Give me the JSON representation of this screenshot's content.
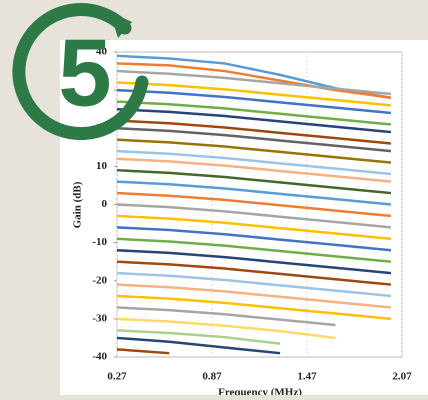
{
  "badge": "5",
  "chart_data": {
    "type": "line",
    "xlabel": "Frequency (MHz)",
    "ylabel": "Gain (dB)",
    "x": [
      0.27,
      0.6,
      0.95,
      1.3,
      1.65,
      2.0
    ],
    "xlim": [
      0.27,
      2.07
    ],
    "xticks": [
      0.27,
      0.87,
      1.47,
      2.07
    ],
    "ylim": [
      -40,
      40
    ],
    "yticks": [
      -40,
      -30,
      -20,
      -10,
      0,
      10,
      20,
      30,
      40
    ],
    "grid": true,
    "series": [
      {
        "color": "#5b9bd5",
        "values": [
          39,
          38.3,
          37,
          34,
          30.5,
          28
        ]
      },
      {
        "color": "#ed7d31",
        "values": [
          37,
          36.5,
          35,
          32.5,
          30,
          28
        ]
      },
      {
        "color": "#a5a5a5",
        "values": [
          35,
          34.3,
          33.2,
          31.8,
          30.4,
          29
        ]
      },
      {
        "color": "#ffc000",
        "values": [
          32,
          31.3,
          30.2,
          28.8,
          27.4,
          26
        ]
      },
      {
        "color": "#4472c4",
        "values": [
          30,
          29.3,
          28.2,
          26.8,
          25.4,
          24
        ]
      },
      {
        "color": "#70ad47",
        "values": [
          27,
          26.3,
          25.2,
          23.8,
          22.4,
          21
        ]
      },
      {
        "color": "#264478",
        "values": [
          25,
          24.3,
          23.2,
          21.8,
          20.4,
          19
        ]
      },
      {
        "color": "#9e480e",
        "values": [
          22,
          21.3,
          20.2,
          18.8,
          17.4,
          16
        ]
      },
      {
        "color": "#636363",
        "values": [
          20,
          19.3,
          18.2,
          16.8,
          15.4,
          14
        ]
      },
      {
        "color": "#997300",
        "values": [
          17,
          16.3,
          15.2,
          13.8,
          12.4,
          11
        ]
      },
      {
        "color": "#9dc3e6",
        "values": [
          14,
          13.3,
          12.2,
          10.8,
          9.4,
          8
        ]
      },
      {
        "color": "#f4b183",
        "values": [
          12,
          11.3,
          10.2,
          8.8,
          7.4,
          6
        ]
      },
      {
        "color": "#43682b",
        "values": [
          9,
          8.3,
          7.2,
          5.8,
          4.4,
          3
        ]
      },
      {
        "color": "#5b9bd5",
        "values": [
          6,
          5.3,
          4.2,
          2.8,
          1.4,
          0
        ]
      },
      {
        "color": "#ed7d31",
        "values": [
          3,
          2.3,
          1.2,
          -0.2,
          -1.6,
          -3
        ]
      },
      {
        "color": "#a5a5a5",
        "values": [
          0,
          -0.7,
          -1.8,
          -3.2,
          -4.6,
          -6
        ]
      },
      {
        "color": "#ffc000",
        "values": [
          -3,
          -3.7,
          -4.8,
          -6.2,
          -7.6,
          -9
        ]
      },
      {
        "color": "#4472c4",
        "values": [
          -6,
          -6.7,
          -7.8,
          -9.2,
          -10.6,
          -12
        ]
      },
      {
        "color": "#70ad47",
        "values": [
          -9,
          -9.7,
          -10.8,
          -12.2,
          -13.6,
          -15
        ]
      },
      {
        "color": "#264478",
        "values": [
          -12,
          -12.7,
          -13.8,
          -15.2,
          -16.6,
          -18
        ]
      },
      {
        "color": "#9e480e",
        "values": [
          -15,
          -15.7,
          -16.8,
          -18.2,
          -19.6,
          -21
        ]
      },
      {
        "color": "#9dc3e6",
        "values": [
          -18,
          -18.7,
          -19.8,
          -21.2,
          -22.6,
          -24
        ]
      },
      {
        "color": "#f4b183",
        "values": [
          -21,
          -21.7,
          -22.8,
          -24.2,
          -25.6,
          -27
        ]
      },
      {
        "color": "#ffc000",
        "values": [
          -24,
          -24.7,
          -25.8,
          -27.2,
          -28.6,
          -30
        ]
      },
      {
        "color": "#a5a5a5",
        "values": [
          -27,
          -27.7,
          -28.8,
          -30.2,
          -31.6,
          null
        ]
      },
      {
        "color": "#ffd966",
        "values": [
          -30,
          -30.7,
          -31.8,
          -33.2,
          -35,
          null
        ]
      },
      {
        "color": "#a9d18e",
        "values": [
          -33,
          -33.7,
          -34.8,
          -36.5,
          null,
          null
        ]
      },
      {
        "color": "#264478",
        "values": [
          -35,
          -36,
          -37.5,
          -39,
          null,
          null
        ]
      },
      {
        "color": "#9e480e",
        "values": [
          -38,
          -39,
          null,
          null,
          null,
          null
        ]
      }
    ]
  }
}
